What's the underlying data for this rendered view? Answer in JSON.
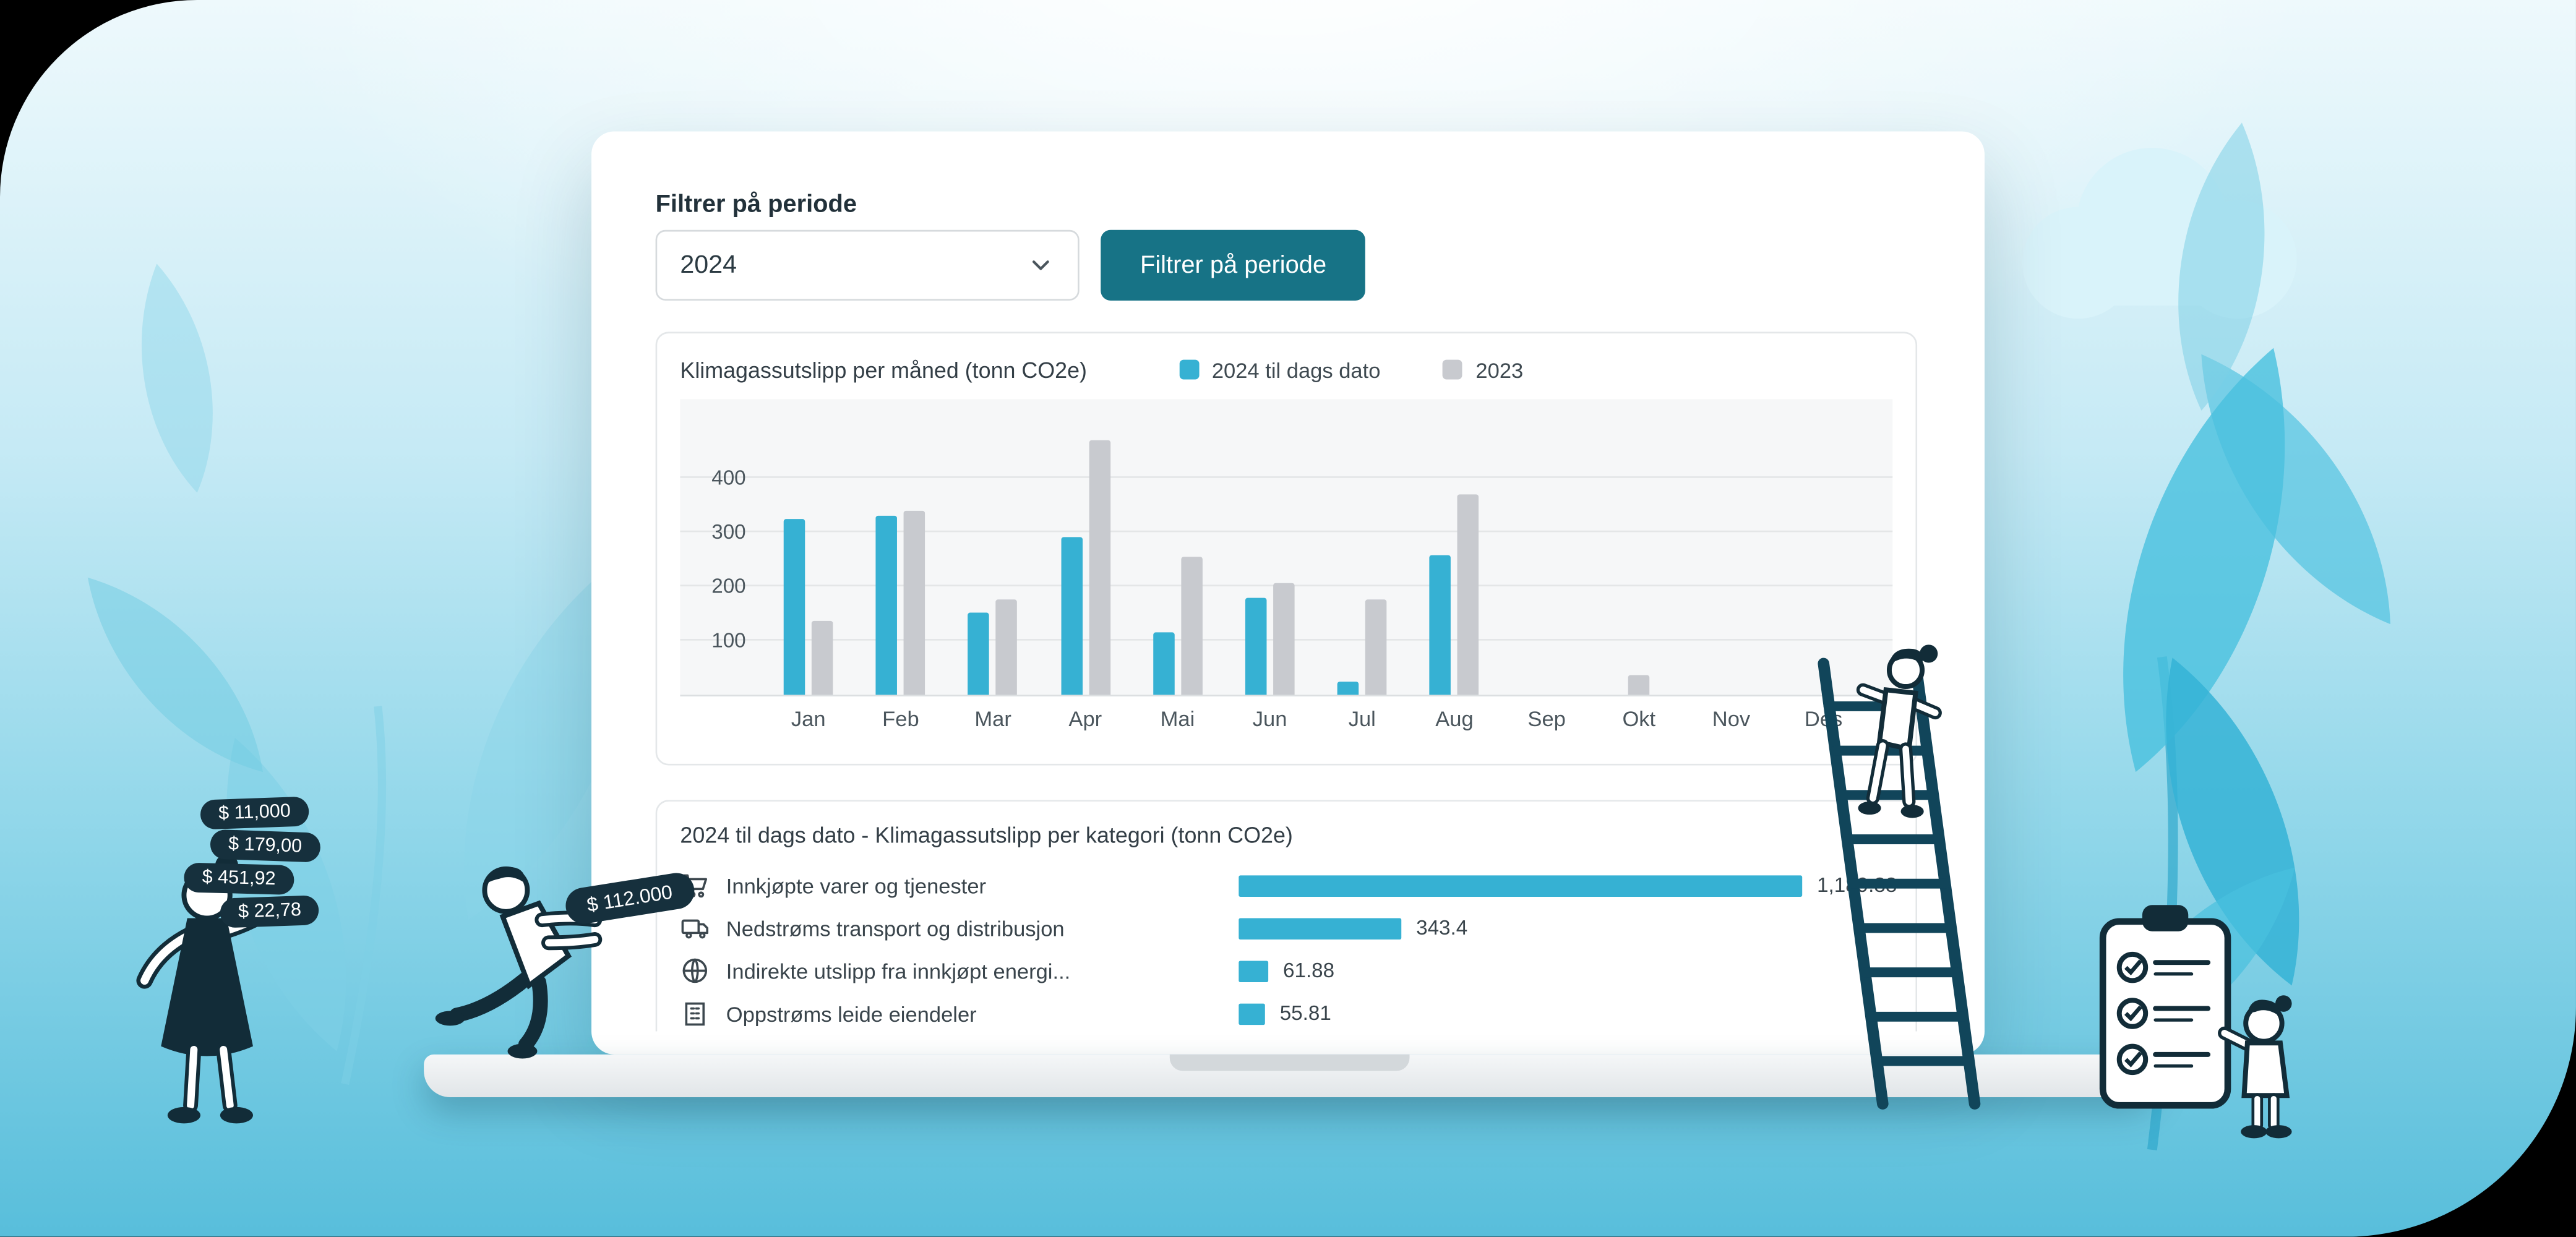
{
  "scene": {
    "sky_gradient_top": "#f0fafd",
    "sky_gradient_bottom": "#55bcd9",
    "corner_mask_color": "#000000"
  },
  "dashboard": {
    "filter": {
      "label": "Filtrer på periode",
      "dropdown_value": "2024",
      "button_label": "Filtrer på periode"
    }
  },
  "chart_data": [
    {
      "type": "bar",
      "title": "Klimagassutslipp per måned (tonn CO2e)",
      "categories": [
        "Jan",
        "Feb",
        "Mar",
        "Apr",
        "Mai",
        "Jun",
        "Jul",
        "Aug",
        "Sep",
        "Okt",
        "Nov",
        "Des"
      ],
      "series": [
        {
          "name": "2024 til dags dato",
          "color": "#36b1d3",
          "values": [
            325,
            330,
            152,
            292,
            115,
            178,
            25,
            257,
            0,
            0,
            0,
            0
          ]
        },
        {
          "name": "2023",
          "color": "#c8cacf",
          "values": [
            135,
            340,
            175,
            470,
            253,
            207,
            175,
            368,
            0,
            35,
            0,
            0
          ]
        }
      ],
      "yticks": [
        100,
        200,
        300,
        400
      ],
      "ylim": [
        0,
        545
      ],
      "grid": true,
      "legend_position": "top"
    },
    {
      "type": "bar",
      "orientation": "horizontal",
      "title": "2024 til dags dato - Klimagassutslipp per kategori (tonn CO2e)",
      "xmax": 1250,
      "bar_color": "#36b1d3",
      "rows": [
        {
          "icon": "cart-icon",
          "label": "Innkjøpte varer og tjenester",
          "value": 1189.88,
          "display": "1,189.88"
        },
        {
          "icon": "truck-icon",
          "label": "Nedstrøms transport og distribusjon",
          "value": 343.4,
          "display": "343.4"
        },
        {
          "icon": "globe-icon",
          "label": "Indirekte utslipp fra innkjøpt energi...",
          "value": 61.88,
          "display": "61.88"
        },
        {
          "icon": "building-icon",
          "label": "Oppstrøms leide eiendeler",
          "value": 55.81,
          "display": "55.81"
        }
      ]
    }
  ],
  "illustration": {
    "price_tags": [
      "$ 11,000",
      "$ 179,00",
      "$ 451,92",
      "$ 22,78"
    ],
    "pushed_tag": "$ 112.000",
    "tag_color": "#16303d"
  },
  "colors": {
    "accent_teal": "#36b1d3",
    "gray_bar": "#c8cacf",
    "button_teal": "#177386",
    "text_dark": "#2b3a42"
  }
}
